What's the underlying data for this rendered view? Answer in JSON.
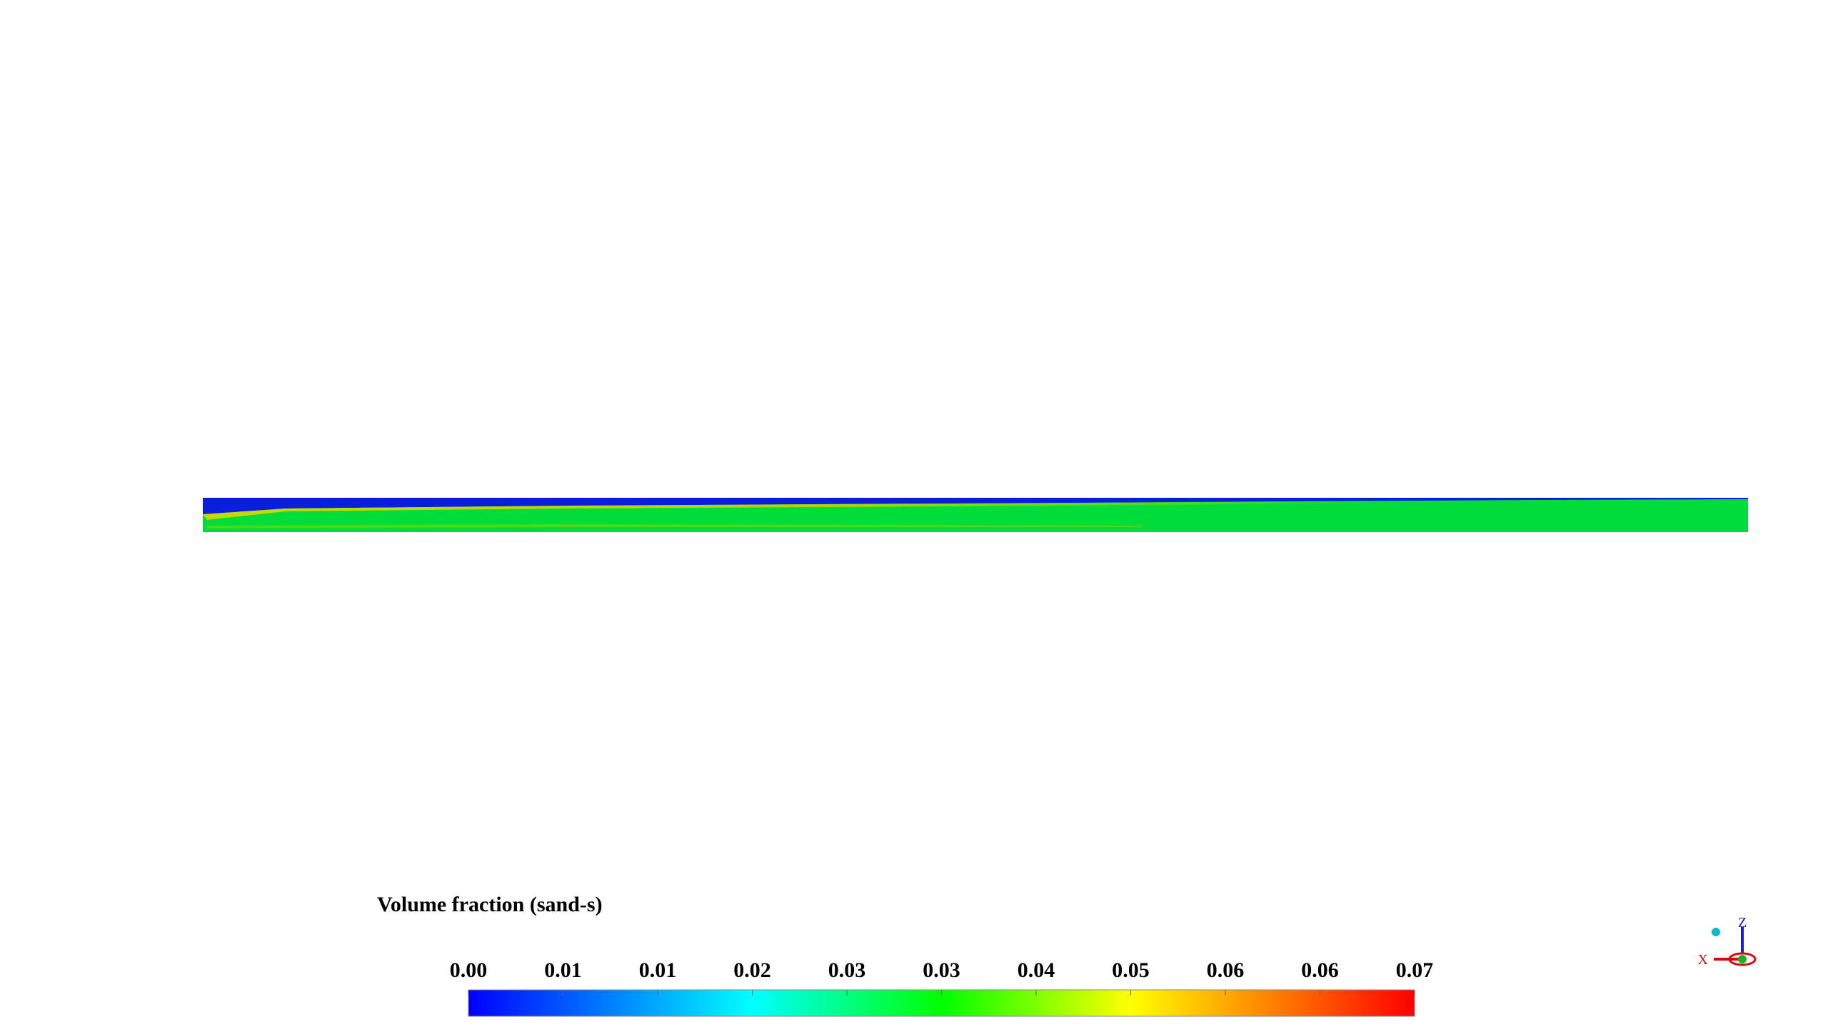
{
  "legend": {
    "title": "Volume fraction (sand-s)",
    "ticks": [
      "0.00",
      "0.01",
      "0.01",
      "0.02",
      "0.03",
      "0.03",
      "0.04",
      "0.05",
      "0.06",
      "0.06",
      "0.07"
    ]
  },
  "triad": {
    "x": "X",
    "z": "Z"
  }
}
